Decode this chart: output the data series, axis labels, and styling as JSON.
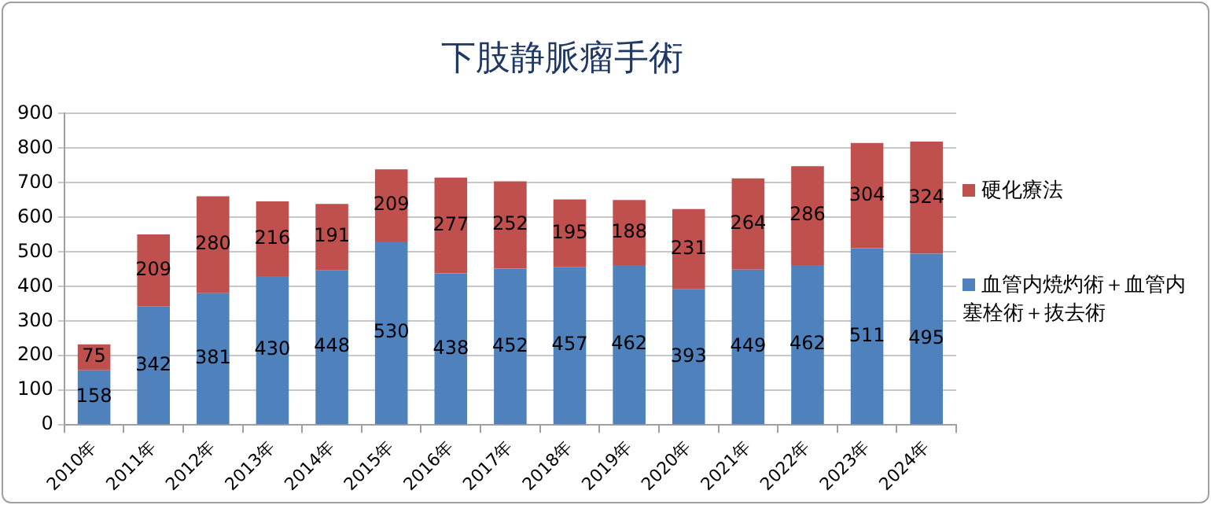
{
  "chart_data": {
    "type": "bar",
    "title": "下肢静脈瘤手術",
    "stacked": true,
    "data_labels": true,
    "grid": "y",
    "legend": "right",
    "categories": [
      "2010年",
      "2011年",
      "2012年",
      "2013年",
      "2014年",
      "2015年",
      "2016年",
      "2017年",
      "2018年",
      "2019年",
      "2020年",
      "2021年",
      "2022年",
      "2023年",
      "2024年"
    ],
    "ylim": [
      0,
      900
    ],
    "yticks": [
      0,
      100,
      200,
      300,
      400,
      500,
      600,
      700,
      800,
      900
    ],
    "series": [
      {
        "name": "血管内焼灼術＋血管内塞栓術＋抜去術",
        "color": "#4f81bd",
        "values": [
          158,
          342,
          381,
          430,
          448,
          530,
          438,
          452,
          457,
          462,
          393,
          449,
          462,
          511,
          495
        ]
      },
      {
        "name": "硬化療法",
        "color": "#c0504d",
        "values": [
          75,
          209,
          280,
          216,
          191,
          209,
          277,
          252,
          195,
          188,
          231,
          264,
          286,
          304,
          324
        ]
      }
    ]
  }
}
